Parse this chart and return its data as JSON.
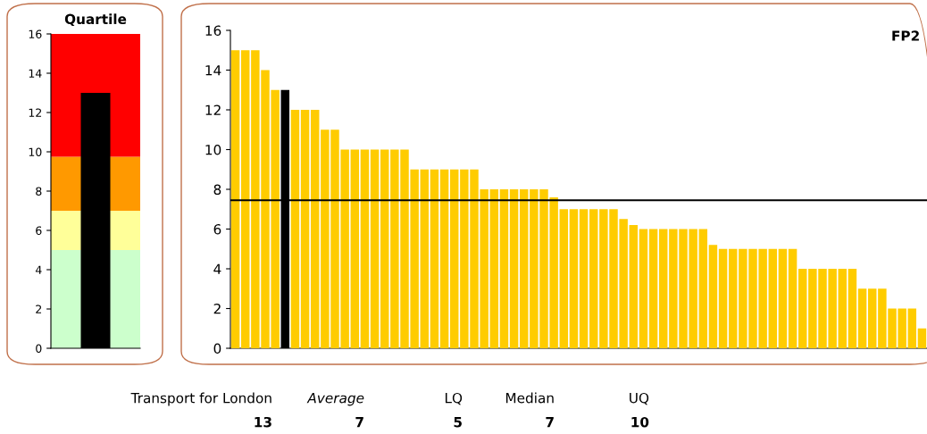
{
  "chart_data": [
    {
      "type": "bar",
      "title": "Quartile",
      "categories": [
        null
      ],
      "values": [
        13
      ],
      "colors": [
        "#000000"
      ],
      "ylim": [
        0,
        16
      ],
      "yticks": [
        0,
        2,
        4,
        6,
        8,
        10,
        12,
        14,
        16
      ],
      "tick_labels": "y",
      "grid": false,
      "legend": false,
      "bands": [
        {
          "axis": "y",
          "from": 0,
          "to": 5,
          "color": "#ccffcc"
        },
        {
          "axis": "y",
          "from": 5,
          "to": 7,
          "color": "#ffff99"
        },
        {
          "axis": "y",
          "from": 7,
          "to": 9.75,
          "color": "#ff9900"
        },
        {
          "axis": "y",
          "from": 9.75,
          "to": 16,
          "color": "#ff0000"
        }
      ]
    },
    {
      "type": "bar",
      "title": "FP2",
      "categories": [
        null,
        null,
        null,
        null,
        null,
        null,
        null,
        null,
        null,
        null,
        null,
        null,
        null,
        null,
        null,
        null,
        null,
        null,
        null,
        null,
        null,
        null,
        null,
        null,
        null,
        null,
        null,
        null,
        null,
        null,
        null,
        null,
        null,
        null,
        null,
        null,
        null,
        null,
        null,
        null,
        null,
        null,
        null,
        null,
        null,
        null,
        null,
        null,
        null,
        null,
        null,
        null,
        null,
        null,
        null,
        null,
        null,
        null,
        null,
        null,
        null,
        null,
        null,
        null,
        null,
        null,
        null,
        null,
        null,
        null
      ],
      "values": [
        15,
        15,
        15,
        14,
        13,
        13,
        12,
        12,
        12,
        11,
        11,
        10,
        10,
        10,
        10,
        10,
        10,
        10,
        9,
        9,
        9,
        9,
        9,
        9,
        9,
        8,
        8,
        8,
        8,
        8,
        8,
        8,
        7.6,
        7,
        7,
        7,
        7,
        7,
        7,
        6.5,
        6.2,
        6,
        6,
        6,
        6,
        6,
        6,
        6,
        5.2,
        5,
        5,
        5,
        5,
        5,
        5,
        5,
        5,
        4,
        4,
        4,
        4,
        4,
        4,
        3,
        3,
        3,
        2,
        2,
        2,
        1
      ],
      "colors": [
        "#ffcc00",
        "#ffcc00",
        "#ffcc00",
        "#ffcc00",
        "#ffcc00",
        "#000000",
        "#ffcc00",
        "#ffcc00",
        "#ffcc00",
        "#ffcc00",
        "#ffcc00",
        "#ffcc00",
        "#ffcc00",
        "#ffcc00",
        "#ffcc00",
        "#ffcc00",
        "#ffcc00",
        "#ffcc00",
        "#ffcc00",
        "#ffcc00",
        "#ffcc00",
        "#ffcc00",
        "#ffcc00",
        "#ffcc00",
        "#ffcc00",
        "#ffcc00",
        "#ffcc00",
        "#ffcc00",
        "#ffcc00",
        "#ffcc00",
        "#ffcc00",
        "#ffcc00",
        "#ffcc00",
        "#ffcc00",
        "#ffcc00",
        "#ffcc00",
        "#ffcc00",
        "#ffcc00",
        "#ffcc00",
        "#ffcc00",
        "#ffcc00",
        "#ffcc00",
        "#ffcc00",
        "#ffcc00",
        "#ffcc00",
        "#ffcc00",
        "#ffcc00",
        "#ffcc00",
        "#ffcc00",
        "#ffcc00",
        "#ffcc00",
        "#ffcc00",
        "#ffcc00",
        "#ffcc00",
        "#ffcc00",
        "#ffcc00",
        "#ffcc00",
        "#ffcc00",
        "#ffcc00",
        "#ffcc00",
        "#ffcc00",
        "#ffcc00",
        "#ffcc00",
        "#ffcc00",
        "#ffcc00",
        "#ffcc00",
        "#ffcc00",
        "#ffcc00",
        "#ffcc00",
        "#ffcc00"
      ],
      "ylim": [
        0,
        16
      ],
      "yticks": [
        0,
        2,
        4,
        6,
        8,
        10,
        12,
        14,
        16
      ],
      "tick_labels": "y",
      "grid": false,
      "legend": false,
      "ref_lines": [
        {
          "axis": "y",
          "value": 7.45,
          "color": "#000000",
          "line_style": "solid"
        }
      ],
      "annotations": [
        "Transport for London",
        "Average",
        "LQ",
        "Median",
        "UQ",
        "13",
        "7",
        "5",
        "7",
        "10"
      ]
    }
  ]
}
